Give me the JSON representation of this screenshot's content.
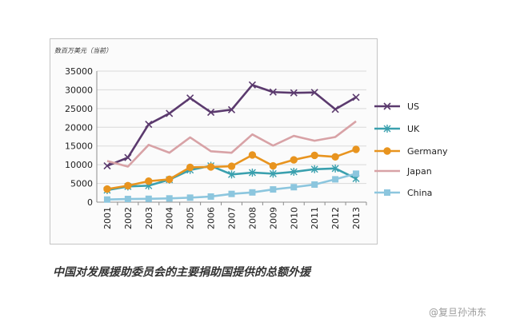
{
  "caption": "中国对发展援助委员会的主要捐助国提供的总额外援",
  "watermark": "@复旦孙沛东",
  "chart_data": {
    "type": "line",
    "unit_label": "数百万美元（当前）",
    "categories": [
      "2001",
      "2002",
      "2003",
      "2004",
      "2005",
      "2006",
      "2007",
      "2008",
      "2009",
      "2010",
      "2011",
      "2012",
      "2013"
    ],
    "ylim": [
      0,
      35000
    ],
    "yticks": [
      "0",
      "5000",
      "10000",
      "15000",
      "20000",
      "25000",
      "30000",
      "35000"
    ],
    "grid": true,
    "legend_placement": "right",
    "series": [
      {
        "name": "US",
        "color": "#5b3a6e",
        "marker": "x",
        "values": [
          9700,
          11900,
          20800,
          23700,
          27800,
          24000,
          24700,
          31300,
          29400,
          29200,
          29300,
          24800,
          28000
        ]
      },
      {
        "name": "UK",
        "color": "#3aa0ae",
        "marker": "asterisk",
        "values": [
          3200,
          4200,
          4400,
          6000,
          8600,
          9700,
          7400,
          7900,
          7600,
          8100,
          8800,
          9000,
          6300
        ]
      },
      {
        "name": "Germany",
        "color": "#e8941f",
        "marker": "circle",
        "values": [
          3500,
          4400,
          5600,
          6100,
          9300,
          9400,
          9600,
          12600,
          9700,
          11300,
          12500,
          12100,
          14100
        ]
      },
      {
        "name": "Japan",
        "color": "#d8a2a6",
        "marker": "none",
        "values": [
          11000,
          9500,
          15300,
          13200,
          17300,
          13600,
          13200,
          18100,
          15100,
          17700,
          16400,
          17400,
          21600
        ]
      },
      {
        "name": "China",
        "color": "#8cc6de",
        "marker": "square",
        "values": [
          700,
          850,
          900,
          1000,
          1200,
          1500,
          2200,
          2600,
          3400,
          4000,
          4700,
          6100,
          7600
        ]
      }
    ]
  }
}
